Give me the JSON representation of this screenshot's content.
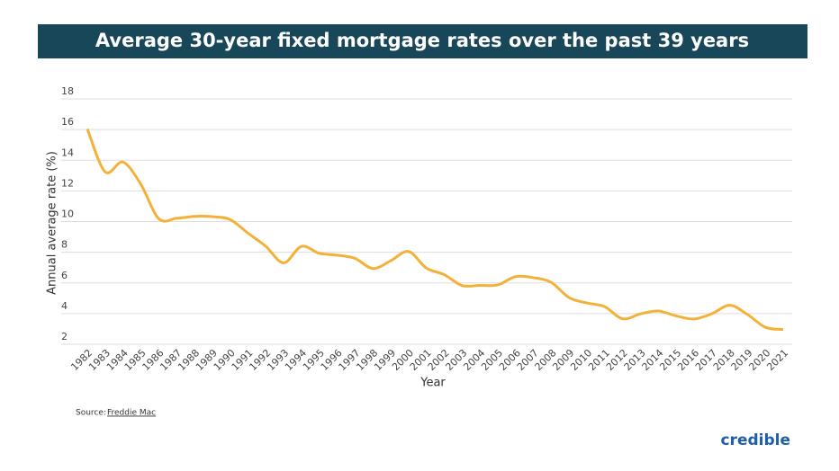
{
  "chart_data": {
    "type": "line",
    "title": "Average 30-year fixed mortgage rates over the past 39 years",
    "ylabel": "Annual average rate (%)",
    "xlabel": "Year",
    "source_prefix": "Source:",
    "source": "Freddie Mac",
    "logo": "credible",
    "categories": [
      "1982",
      "1983",
      "1984",
      "1985",
      "1986",
      "1987",
      "1988",
      "1989",
      "1990",
      "1991",
      "1992",
      "1993",
      "1994",
      "1995",
      "1996",
      "1997",
      "1998",
      "1999",
      "2000",
      "2001",
      "2002",
      "2003",
      "2004",
      "2005",
      "2006",
      "2007",
      "2008",
      "2009",
      "2010",
      "2011",
      "2012",
      "2013",
      "2014",
      "2015",
      "2016",
      "2017",
      "2018",
      "2019",
      "2020",
      "2021"
    ],
    "series": [
      {
        "name": "Annual average rate",
        "color": "#f3b13a",
        "values": [
          16.04,
          13.24,
          13.88,
          12.43,
          10.19,
          10.21,
          10.34,
          10.32,
          10.13,
          9.25,
          8.39,
          7.31,
          8.38,
          7.93,
          7.81,
          7.6,
          6.94,
          7.44,
          8.05,
          6.97,
          6.54,
          5.83,
          5.84,
          5.87,
          6.41,
          6.34,
          6.03,
          5.04,
          4.69,
          4.45,
          3.66,
          3.98,
          4.17,
          3.85,
          3.65,
          3.99,
          4.54,
          3.94,
          3.11,
          2.96
        ]
      }
    ],
    "ylim": [
      2,
      18
    ],
    "yticks": [
      2,
      4,
      6,
      8,
      10,
      12,
      14,
      16,
      18
    ],
    "grid": true
  }
}
